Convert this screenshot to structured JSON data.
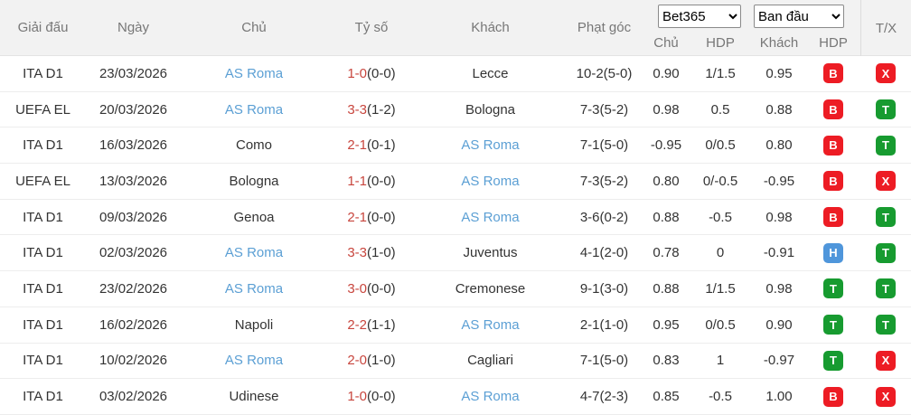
{
  "header": {
    "columns": {
      "league": "Giải đấu",
      "date": "Ngày",
      "home": "Chủ",
      "score": "Tỷ số",
      "away": "Khách",
      "corners": "Phạt góc",
      "tx": "T/X"
    },
    "bookmaker_select": {
      "selected": "Bet365"
    },
    "odds_type_select": {
      "selected": "Ban đầu"
    },
    "odds_subcolumns": [
      "Chủ",
      "HDP",
      "Khách",
      "HDP"
    ]
  },
  "colors": {
    "badge_red": "#ed1c24",
    "badge_green": "#179b30",
    "badge_blue": "#4f96db",
    "link_blue": "#5b9fd4",
    "score_red": "#c8463e",
    "header_bg": "#f2f2f2"
  },
  "rows": [
    {
      "league": "ITA D1",
      "date": "23/03/2026",
      "home": "AS Roma",
      "home_link": true,
      "score_main": "1-0",
      "score_ht": "(0-0)",
      "away": "Lecce",
      "away_link": false,
      "corners": "10-2(5-0)",
      "odds_home": "0.90",
      "hdp": "1/1.5",
      "odds_away": "0.95",
      "result_badge": {
        "label": "B",
        "color": "red"
      },
      "tx_badge": {
        "label": "X",
        "color": "red"
      }
    },
    {
      "league": "UEFA EL",
      "date": "20/03/2026",
      "home": "AS Roma",
      "home_link": true,
      "score_main": "3-3",
      "score_ht": "(1-2)",
      "away": "Bologna",
      "away_link": false,
      "corners": "7-3(5-2)",
      "odds_home": "0.98",
      "hdp": "0.5",
      "odds_away": "0.88",
      "result_badge": {
        "label": "B",
        "color": "red"
      },
      "tx_badge": {
        "label": "T",
        "color": "green"
      }
    },
    {
      "league": "ITA D1",
      "date": "16/03/2026",
      "home": "Como",
      "home_link": false,
      "score_main": "2-1",
      "score_ht": "(0-1)",
      "away": "AS Roma",
      "away_link": true,
      "corners": "7-1(5-0)",
      "odds_home": "-0.95",
      "hdp": "0/0.5",
      "odds_away": "0.80",
      "result_badge": {
        "label": "B",
        "color": "red"
      },
      "tx_badge": {
        "label": "T",
        "color": "green"
      }
    },
    {
      "league": "UEFA EL",
      "date": "13/03/2026",
      "home": "Bologna",
      "home_link": false,
      "score_main": "1-1",
      "score_ht": "(0-0)",
      "away": "AS Roma",
      "away_link": true,
      "corners": "7-3(5-2)",
      "odds_home": "0.80",
      "hdp": "0/-0.5",
      "odds_away": "-0.95",
      "result_badge": {
        "label": "B",
        "color": "red"
      },
      "tx_badge": {
        "label": "X",
        "color": "red"
      }
    },
    {
      "league": "ITA D1",
      "date": "09/03/2026",
      "home": "Genoa",
      "home_link": false,
      "score_main": "2-1",
      "score_ht": "(0-0)",
      "away": "AS Roma",
      "away_link": true,
      "corners": "3-6(0-2)",
      "odds_home": "0.88",
      "hdp": "-0.5",
      "odds_away": "0.98",
      "result_badge": {
        "label": "B",
        "color": "red"
      },
      "tx_badge": {
        "label": "T",
        "color": "green"
      }
    },
    {
      "league": "ITA D1",
      "date": "02/03/2026",
      "home": "AS Roma",
      "home_link": true,
      "score_main": "3-3",
      "score_ht": "(1-0)",
      "away": "Juventus",
      "away_link": false,
      "corners": "4-1(2-0)",
      "odds_home": "0.78",
      "hdp": "0",
      "odds_away": "-0.91",
      "result_badge": {
        "label": "H",
        "color": "blue"
      },
      "tx_badge": {
        "label": "T",
        "color": "green"
      }
    },
    {
      "league": "ITA D1",
      "date": "23/02/2026",
      "home": "AS Roma",
      "home_link": true,
      "score_main": "3-0",
      "score_ht": "(0-0)",
      "away": "Cremonese",
      "away_link": false,
      "corners": "9-1(3-0)",
      "odds_home": "0.88",
      "hdp": "1/1.5",
      "odds_away": "0.98",
      "result_badge": {
        "label": "T",
        "color": "green"
      },
      "tx_badge": {
        "label": "T",
        "color": "green"
      }
    },
    {
      "league": "ITA D1",
      "date": "16/02/2026",
      "home": "Napoli",
      "home_link": false,
      "score_main": "2-2",
      "score_ht": "(1-1)",
      "away": "AS Roma",
      "away_link": true,
      "corners": "2-1(1-0)",
      "odds_home": "0.95",
      "hdp": "0/0.5",
      "odds_away": "0.90",
      "result_badge": {
        "label": "T",
        "color": "green"
      },
      "tx_badge": {
        "label": "T",
        "color": "green"
      }
    },
    {
      "league": "ITA D1",
      "date": "10/02/2026",
      "home": "AS Roma",
      "home_link": true,
      "score_main": "2-0",
      "score_ht": "(1-0)",
      "away": "Cagliari",
      "away_link": false,
      "corners": "7-1(5-0)",
      "odds_home": "0.83",
      "hdp": "1",
      "odds_away": "-0.97",
      "result_badge": {
        "label": "T",
        "color": "green"
      },
      "tx_badge": {
        "label": "X",
        "color": "red"
      }
    },
    {
      "league": "ITA D1",
      "date": "03/02/2026",
      "home": "Udinese",
      "home_link": false,
      "score_main": "1-0",
      "score_ht": "(0-0)",
      "away": "AS Roma",
      "away_link": true,
      "corners": "4-7(2-3)",
      "odds_home": "0.85",
      "hdp": "-0.5",
      "odds_away": "1.00",
      "result_badge": {
        "label": "B",
        "color": "red"
      },
      "tx_badge": {
        "label": "X",
        "color": "red"
      }
    }
  ]
}
